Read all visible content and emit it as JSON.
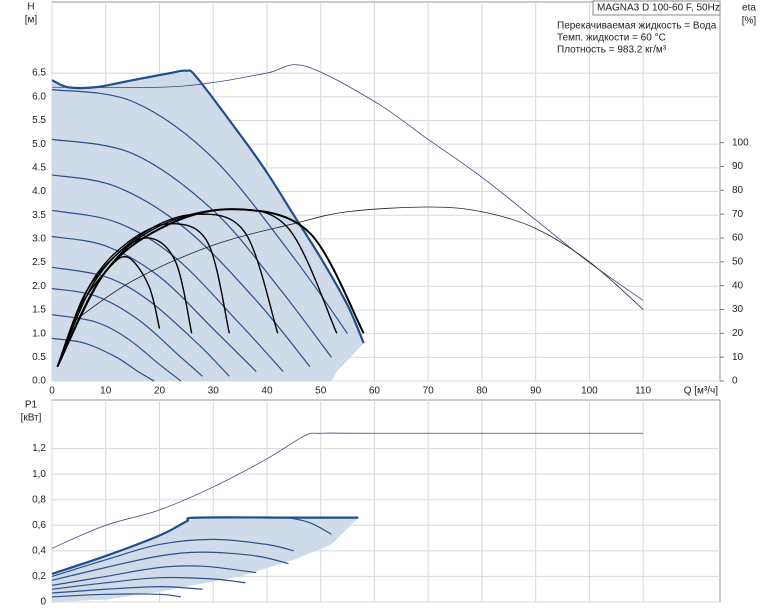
{
  "chart_data": [
    {
      "type": "line",
      "title": "MAGNA3 D 100-60 F, 50Hz",
      "annotations": [
        "Перекачиваемая жидкость = Вода",
        "Темп. жидкости = 60 °C",
        "Плотность = 983.2 кг/м³"
      ],
      "ylabel": "H",
      "ylabel_unit": "[м]",
      "y2label": "eta",
      "y2label_unit": "[%]",
      "xlabel": "Q [м³/ч]",
      "xlim": [
        0,
        124.3
      ],
      "ylim": [
        0,
        8
      ],
      "y2lim": [
        0,
        159
      ],
      "grid": true,
      "xticks": [
        0,
        10,
        20,
        30,
        40,
        50,
        60,
        70,
        80,
        90,
        100,
        110
      ],
      "yticks": [
        {
          "value": 0,
          "label": "0.0"
        },
        0.5,
        {
          "value": 1,
          "label": "1.0"
        },
        1.5,
        {
          "value": 2,
          "label": "2.0"
        },
        2.5,
        {
          "value": 3,
          "label": "3.0"
        },
        3.5,
        {
          "value": 4,
          "label": "4.0"
        },
        4.5,
        {
          "value": 5,
          "label": "5.0"
        },
        5.5,
        {
          "value": 6,
          "label": "6.0"
        },
        6.5
      ],
      "y2ticks": [
        0,
        10,
        20,
        30,
        40,
        50,
        60,
        70,
        80,
        90,
        100
      ],
      "series": [
        {
          "color": "#cfdbe8",
          "fill": true,
          "x": [
            0,
            3,
            8,
            15,
            22,
            25,
            27,
            35,
            40,
            45,
            50,
            55,
            58,
            53,
            52,
            0
          ],
          "values": [
            6.35,
            6.2,
            6.2,
            6.35,
            6.5,
            6.55,
            6.4,
            5.2,
            4.4,
            3.5,
            2.6,
            1.6,
            0.8,
            0.2,
            0,
            0
          ]
        },
        {
          "color": "#2b4f8a",
          "width": 1.2,
          "x": [
            0,
            15,
            30,
            45,
            55
          ],
          "values": [
            6.15,
            5.9,
            4.7,
            2.6,
            1.0
          ]
        },
        {
          "color": "#2b4f8a",
          "width": 1.2,
          "x": [
            0,
            15,
            30,
            42,
            52
          ],
          "values": [
            5.1,
            4.8,
            3.6,
            2.0,
            0.5
          ]
        },
        {
          "color": "#2b4f8a",
          "width": 1.2,
          "x": [
            0,
            12,
            25,
            38,
            48
          ],
          "values": [
            4.35,
            4.1,
            3.2,
            1.7,
            0.3
          ]
        },
        {
          "color": "#2b4f8a",
          "width": 1.2,
          "x": [
            0,
            12,
            23,
            35,
            43
          ],
          "values": [
            3.6,
            3.35,
            2.6,
            1.2,
            0.2
          ]
        },
        {
          "color": "#2b4f8a",
          "width": 1.2,
          "x": [
            0,
            10,
            20,
            30,
            38
          ],
          "values": [
            3.05,
            2.85,
            2.2,
            1.1,
            0.2
          ]
        },
        {
          "color": "#2b4f8a",
          "width": 1.2,
          "x": [
            0,
            10,
            18,
            27,
            33
          ],
          "values": [
            2.4,
            2.2,
            1.7,
            0.8,
            0.1
          ]
        },
        {
          "color": "#2b4f8a",
          "width": 1.2,
          "x": [
            0,
            8,
            16,
            24,
            28
          ],
          "values": [
            1.95,
            1.8,
            1.3,
            0.5,
            0.1
          ]
        },
        {
          "color": "#2b4f8a",
          "width": 1.2,
          "x": [
            0,
            8,
            14,
            20,
            24
          ],
          "values": [
            1.4,
            1.25,
            0.9,
            0.35,
            0
          ]
        },
        {
          "color": "#2b4f8a",
          "width": 1.2,
          "x": [
            0,
            6,
            12,
            16,
            19
          ],
          "values": [
            0.9,
            0.8,
            0.5,
            0.2,
            0
          ]
        },
        {
          "color": "#1f4e8c",
          "width": 2.2,
          "x": [
            0,
            3,
            8,
            15,
            22,
            25,
            27,
            35,
            40,
            45,
            50,
            55,
            58
          ],
          "values": [
            6.35,
            6.2,
            6.2,
            6.35,
            6.5,
            6.55,
            6.4,
            5.2,
            4.4,
            3.5,
            2.6,
            1.6,
            0.8
          ]
        },
        {
          "color": "#3a4a7a",
          "width": 0.8,
          "x": [
            0,
            20,
            30,
            40,
            47,
            60,
            70,
            80,
            90,
            100,
            110
          ],
          "values": [
            6.2,
            6.2,
            6.3,
            6.5,
            6.65,
            5.9,
            5.1,
            4.3,
            3.4,
            2.5,
            1.7
          ]
        },
        {
          "color": "#222222",
          "width": 0.8,
          "axis": "y2",
          "x": [
            4,
            15,
            30,
            45,
            55,
            70,
            80,
            90,
            100,
            110
          ],
          "values": [
            25,
            42,
            57,
            66,
            71,
            73,
            71,
            64,
            50,
            30
          ]
        },
        {
          "color": "#000000",
          "width": 1.4,
          "axis": "y2",
          "x": [
            1,
            5,
            10,
            14,
            18,
            20
          ],
          "values": [
            6,
            30,
            46,
            52,
            40,
            22
          ]
        },
        {
          "color": "#000000",
          "width": 1.4,
          "axis": "y2",
          "x": [
            1,
            6,
            12,
            18,
            23,
            26
          ],
          "values": [
            6,
            36,
            53,
            60,
            50,
            20
          ]
        },
        {
          "color": "#000000",
          "width": 1.4,
          "axis": "y2",
          "x": [
            1,
            7,
            14,
            22,
            29,
            33
          ],
          "values": [
            6,
            40,
            58,
            66,
            58,
            20
          ]
        },
        {
          "color": "#000000",
          "width": 1.4,
          "axis": "y2",
          "x": [
            1,
            8,
            17,
            27,
            36,
            42
          ],
          "values": [
            6,
            42,
            62,
            70,
            62,
            20
          ]
        },
        {
          "color": "#000000",
          "width": 1.4,
          "axis": "y2",
          "x": [
            1,
            10,
            20,
            33,
            44,
            53
          ],
          "values": [
            6,
            46,
            65,
            72,
            64,
            20
          ]
        },
        {
          "color": "#000000",
          "width": 2,
          "axis": "y2",
          "x": [
            1,
            10,
            22,
            35,
            48,
            58
          ],
          "values": [
            6,
            46,
            66,
            72,
            62,
            20
          ]
        }
      ]
    },
    {
      "type": "line",
      "ylabel": "P1",
      "ylabel_unit": "[кВт]",
      "xlim": [
        0,
        124.3
      ],
      "ylim": [
        0,
        1.58
      ],
      "grid": true,
      "xtick_labels": false,
      "xticks": [
        0,
        10,
        20,
        30,
        40,
        50,
        60,
        70,
        80,
        90,
        100,
        110
      ],
      "yticks": [
        0,
        {
          "value": 0.2,
          "label": "0,2"
        },
        {
          "value": 0.4,
          "label": "0,4"
        },
        {
          "value": 0.6,
          "label": "0,6"
        },
        {
          "value": 0.8,
          "label": "0,8"
        },
        {
          "value": 1.0,
          "label": "1,0"
        },
        {
          "value": 1.2,
          "label": "1,2"
        }
      ],
      "series": [
        {
          "color": "#cfdbe8",
          "fill": true,
          "x": [
            0,
            10,
            20,
            25,
            27,
            45,
            57,
            52,
            45,
            35,
            20,
            10,
            0
          ],
          "values": [
            0.22,
            0.36,
            0.52,
            0.63,
            0.66,
            0.66,
            0.66,
            0.45,
            0.33,
            0.2,
            0.08,
            0.02,
            0
          ]
        },
        {
          "color": "#2b4f8a",
          "width": 1.2,
          "x": [
            44,
            48,
            52
          ],
          "values": [
            0.66,
            0.62,
            0.53
          ]
        },
        {
          "color": "#2b4f8a",
          "width": 1.2,
          "x": [
            0,
            10,
            20,
            30,
            40,
            45
          ],
          "values": [
            0.2,
            0.33,
            0.45,
            0.49,
            0.45,
            0.4
          ]
        },
        {
          "color": "#2b4f8a",
          "width": 1.2,
          "x": [
            0,
            10,
            20,
            28,
            38,
            44
          ],
          "values": [
            0.17,
            0.27,
            0.36,
            0.39,
            0.36,
            0.3
          ]
        },
        {
          "color": "#2b4f8a",
          "width": 1.2,
          "x": [
            0,
            10,
            20,
            28,
            38
          ],
          "values": [
            0.13,
            0.2,
            0.27,
            0.28,
            0.23
          ]
        },
        {
          "color": "#2b4f8a",
          "width": 1.2,
          "x": [
            0,
            10,
            20,
            30,
            36
          ],
          "values": [
            0.1,
            0.15,
            0.19,
            0.18,
            0.15
          ]
        },
        {
          "color": "#2b4f8a",
          "width": 1.2,
          "x": [
            0,
            10,
            20,
            28
          ],
          "values": [
            0.07,
            0.1,
            0.12,
            0.1
          ]
        },
        {
          "color": "#2b4f8a",
          "width": 1.2,
          "x": [
            0,
            10,
            20,
            24
          ],
          "values": [
            0.04,
            0.06,
            0.06,
            0.04
          ]
        },
        {
          "color": "#1f4e8c",
          "width": 2.2,
          "x": [
            0,
            10,
            20,
            25,
            27,
            45,
            57
          ],
          "values": [
            0.22,
            0.36,
            0.52,
            0.63,
            0.66,
            0.66,
            0.66
          ]
        },
        {
          "color": "#3a4a7a",
          "width": 0.8,
          "x": [
            0,
            10,
            20,
            30,
            40,
            47,
            50,
            60,
            110
          ],
          "values": [
            0.42,
            0.6,
            0.72,
            0.9,
            1.12,
            1.3,
            1.32,
            1.32,
            1.32
          ]
        }
      ]
    }
  ]
}
